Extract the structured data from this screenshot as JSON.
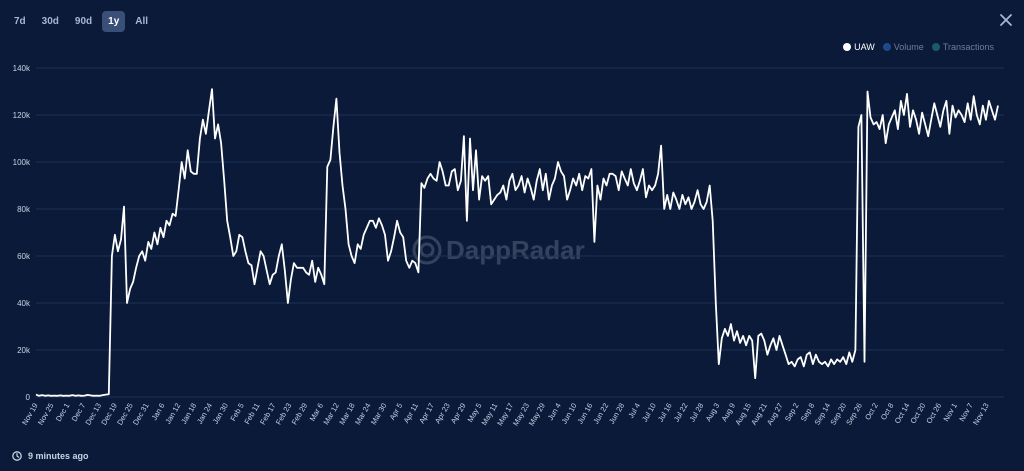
{
  "range_tabs": [
    "7d",
    "30d",
    "90d",
    "1y",
    "All"
  ],
  "active_range": "1y",
  "legend": [
    {
      "label": "UAW",
      "color": "#ffffff",
      "active": true
    },
    {
      "label": "Volume",
      "color": "#1e4a8c",
      "active": false
    },
    {
      "label": "Transactions",
      "color": "#1a5a6a",
      "active": false
    }
  ],
  "watermark": "DappRadar",
  "footer": {
    "updated": "9 minutes ago"
  },
  "chart_data": {
    "type": "line",
    "title": "",
    "xlabel": "",
    "ylabel": "",
    "ylim": [
      0,
      140000
    ],
    "yticks": [
      0,
      20000,
      40000,
      60000,
      80000,
      100000,
      120000,
      140000
    ],
    "ytick_labels": [
      "0",
      "20k",
      "40k",
      "60k",
      "80k",
      "100k",
      "120k",
      "140k"
    ],
    "x_ticks": [
      "Nov 19",
      "Nov 25",
      "Dec 1",
      "Dec 7",
      "Dec 13",
      "Dec 19",
      "Dec 25",
      "Dec 31",
      "Jan 6",
      "Jan 12",
      "Jan 18",
      "Jan 24",
      "Jan 30",
      "Feb 5",
      "Feb 11",
      "Feb 17",
      "Feb 23",
      "Feb 29",
      "Mar 6",
      "Mar 12",
      "Mar 18",
      "Mar 24",
      "Mar 30",
      "Apr 5",
      "Apr 11",
      "Apr 17",
      "Apr 23",
      "Apr 29",
      "May 5",
      "May 11",
      "May 17",
      "May 23",
      "May 29",
      "Jun 4",
      "Jun 10",
      "Jun 16",
      "Jun 22",
      "Jun 28",
      "Jul 4",
      "Jul 10",
      "Jul 16",
      "Jul 22",
      "Jul 28",
      "Aug 3",
      "Aug 9",
      "Aug 15",
      "Aug 21",
      "Aug 27",
      "Sep 2",
      "Sep 8",
      "Sep 14",
      "Sep 20",
      "Sep 26",
      "Oct 2",
      "Oct 8",
      "Oct 14",
      "Oct 20",
      "Oct 26",
      "Nov 1",
      "Nov 7",
      "Nov 13"
    ],
    "grid": true,
    "legend_position": "top-right",
    "series": [
      {
        "name": "UAW",
        "color": "#ffffff",
        "values": [
          1000,
          500,
          800,
          500,
          700,
          500,
          600,
          500,
          700,
          500,
          600,
          500,
          800,
          500,
          700,
          500,
          600,
          900,
          700,
          500,
          600,
          500,
          800,
          1000,
          1200,
          60000,
          69000,
          62000,
          67000,
          81000,
          40000,
          46000,
          49000,
          55000,
          60000,
          62000,
          58000,
          66000,
          63000,
          70000,
          65000,
          72000,
          68000,
          75000,
          73000,
          78000,
          77000,
          88000,
          100000,
          93000,
          105000,
          96000,
          95000,
          95000,
          110000,
          118000,
          112000,
          122000,
          131000,
          110000,
          116000,
          108000,
          92000,
          75000,
          68000,
          60000,
          62000,
          69000,
          68000,
          62000,
          57000,
          56000,
          48000,
          55000,
          62000,
          60000,
          54000,
          48000,
          52000,
          53000,
          60000,
          65000,
          54000,
          40000,
          50000,
          57000,
          55000,
          55000,
          55000,
          53000,
          52000,
          58000,
          49000,
          55000,
          52000,
          48000,
          98000,
          101000,
          115000,
          127000,
          104000,
          90000,
          80000,
          65000,
          60000,
          57000,
          65000,
          63000,
          69000,
          72000,
          75000,
          75000,
          72000,
          76000,
          73000,
          69000,
          58000,
          62000,
          68000,
          75000,
          70000,
          68000,
          58000,
          55000,
          58000,
          57000,
          53000,
          91000,
          89000,
          93000,
          95000,
          93000,
          92000,
          100000,
          96000,
          90000,
          90000,
          96000,
          97000,
          88000,
          92000,
          111000,
          75000,
          110000,
          88000,
          105000,
          84000,
          94000,
          92000,
          94000,
          82000,
          84000,
          86000,
          87000,
          90000,
          84000,
          92000,
          95000,
          88000,
          90000,
          94000,
          87000,
          93000,
          89000,
          84000,
          92000,
          97000,
          88000,
          95000,
          84000,
          90000,
          93000,
          100000,
          96000,
          94000,
          84000,
          88000,
          93000,
          90000,
          95000,
          88000,
          94000,
          93000,
          97000,
          66000,
          90000,
          84000,
          93000,
          90000,
          95000,
          95000,
          94000,
          88000,
          96000,
          93000,
          90000,
          97000,
          91000,
          88000,
          92000,
          97000,
          85000,
          90000,
          88000,
          90000,
          95000,
          107000,
          80000,
          86000,
          80000,
          87000,
          84000,
          80000,
          86000,
          82000,
          85000,
          80000,
          83000,
          88000,
          82000,
          80000,
          83000,
          90000,
          75000,
          40000,
          14000,
          25000,
          29000,
          26000,
          31000,
          24000,
          28000,
          23000,
          26000,
          22000,
          26000,
          24000,
          8000,
          26000,
          27000,
          24000,
          18000,
          22000,
          25000,
          20000,
          26000,
          22000,
          18000,
          14000,
          15000,
          13000,
          16000,
          17000,
          13000,
          18000,
          19000,
          14000,
          18000,
          15000,
          14000,
          15000,
          13000,
          16000,
          14000,
          16000,
          15000,
          17000,
          14000,
          19000,
          15000,
          20000,
          115000,
          120000,
          15000,
          130000,
          119000,
          116000,
          117000,
          114000,
          120000,
          108000,
          116000,
          119000,
          122000,
          114000,
          126000,
          120000,
          129000,
          115000,
          122000,
          118000,
          112000,
          121000,
          116000,
          111000,
          118000,
          125000,
          120000,
          115000,
          122000,
          126000,
          112000,
          124000,
          119000,
          122000,
          120000,
          117000,
          125000,
          118000,
          128000,
          120000,
          116000,
          124000,
          118000,
          126000,
          122000,
          118000,
          124000
        ]
      }
    ]
  }
}
